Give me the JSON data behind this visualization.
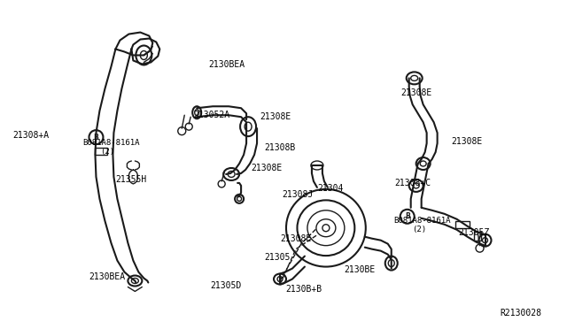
{
  "background_color": "#ffffff",
  "line_color": "#1a1a1a",
  "text_color": "#000000",
  "fig_width": 6.4,
  "fig_height": 3.72,
  "dpi": 100,
  "labels": [
    [
      "2130BEA",
      235,
      68,
      7
    ],
    [
      "21308+A",
      14,
      148,
      7
    ],
    [
      "B081A8-8161A",
      93,
      157,
      6.5
    ],
    [
      "(2)",
      113,
      167,
      6.5
    ],
    [
      "21355H",
      130,
      198,
      7
    ],
    [
      "2130BEA",
      100,
      308,
      7
    ],
    [
      "213052A",
      218,
      125,
      7
    ],
    [
      "21308E",
      293,
      127,
      7
    ],
    [
      "21308B",
      298,
      162,
      7
    ],
    [
      "21308E",
      283,
      185,
      7
    ],
    [
      "21308J",
      318,
      215,
      7
    ],
    [
      "21304",
      358,
      208,
      7
    ],
    [
      "21308E",
      316,
      265,
      7
    ],
    [
      "21305",
      298,
      286,
      7
    ],
    [
      "21305D",
      237,
      318,
      7
    ],
    [
      "2130B+B",
      322,
      323,
      7
    ],
    [
      "2130BE",
      388,
      300,
      7
    ],
    [
      "21308E",
      453,
      100,
      7
    ],
    [
      "21308E",
      510,
      155,
      7
    ],
    [
      "21308+C",
      446,
      202,
      7
    ],
    [
      "B081A8-8161A",
      445,
      245,
      6.5
    ],
    [
      "(2)",
      465,
      255,
      6.5
    ],
    [
      "21305Z",
      518,
      258,
      7
    ],
    [
      "R2130028",
      565,
      350,
      7
    ]
  ]
}
